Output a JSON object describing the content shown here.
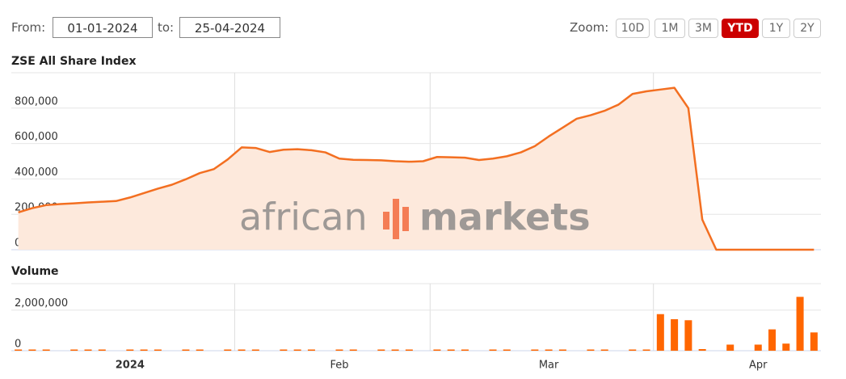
{
  "controls": {
    "from_label": "From:",
    "from_value": "01-01-2024",
    "to_label": "to:",
    "to_value": "25-04-2024",
    "zoom_label": "Zoom:",
    "zoom_buttons": [
      "10D",
      "1M",
      "3M",
      "YTD",
      "1Y",
      "2Y"
    ],
    "active_zoom": "YTD"
  },
  "watermark": {
    "left": "african",
    "right": "markets"
  },
  "chart_data": [
    {
      "type": "area",
      "title": "ZSE All Share Index",
      "color": "#f36f21",
      "fill": "#fde9dc",
      "categories": [
        null,
        null,
        null,
        null,
        null,
        null,
        null,
        null,
        "2024",
        null,
        null,
        null,
        null,
        null,
        null,
        null,
        null,
        null,
        null,
        null,
        null,
        null,
        null,
        "Feb",
        null,
        null,
        null,
        null,
        null,
        null,
        null,
        null,
        null,
        null,
        null,
        null,
        null,
        null,
        "Mar",
        null,
        null,
        null,
        null,
        null,
        null,
        null,
        null,
        null,
        null,
        null,
        null,
        null,
        null,
        "Apr",
        null,
        null,
        null,
        null
      ],
      "values": [
        211000,
        235000,
        252000,
        258000,
        262000,
        267000,
        271000,
        275000,
        295000,
        320000,
        345000,
        367000,
        398000,
        433000,
        455000,
        510000,
        578000,
        575000,
        552000,
        565000,
        568000,
        562000,
        550000,
        515000,
        508000,
        507000,
        505000,
        500000,
        497000,
        500000,
        524000,
        522000,
        520000,
        507000,
        515000,
        528000,
        550000,
        585000,
        640000,
        690000,
        740000,
        760000,
        785000,
        820000,
        880000,
        895000,
        905000,
        915000,
        800000,
        170000,
        0,
        0,
        0,
        0,
        0,
        0,
        0,
        0
      ],
      "ylim": [
        0,
        1000000
      ],
      "yticks": [
        0,
        {
          "value": 200000,
          "label": "200,000"
        },
        {
          "value": 400000,
          "label": "400,000"
        },
        {
          "value": 600000,
          "label": "600,000"
        },
        {
          "value": 800000,
          "label": "800,000"
        }
      ],
      "grid": true
    },
    {
      "type": "bar",
      "title": "Volume",
      "color": "#ff6600",
      "categories": [
        null,
        null,
        null,
        null,
        null,
        null,
        null,
        null,
        "2024",
        null,
        null,
        null,
        null,
        null,
        null,
        null,
        null,
        null,
        null,
        null,
        null,
        null,
        null,
        "Feb",
        null,
        null,
        null,
        null,
        null,
        null,
        null,
        null,
        null,
        null,
        null,
        null,
        null,
        null,
        "Mar",
        null,
        null,
        null,
        null,
        null,
        null,
        null,
        null,
        null,
        null,
        null,
        null,
        null,
        null,
        "Apr",
        null,
        null,
        null,
        null
      ],
      "values": [
        15000,
        15000,
        15000,
        0,
        15000,
        15000,
        15000,
        0,
        15000,
        15000,
        15000,
        0,
        15000,
        15000,
        0,
        15000,
        15000,
        15000,
        0,
        15000,
        15000,
        15000,
        0,
        15000,
        15000,
        0,
        15000,
        15000,
        15000,
        0,
        15000,
        15000,
        15000,
        0,
        15000,
        15000,
        0,
        15000,
        15000,
        15000,
        0,
        15000,
        15000,
        0,
        15000,
        15000,
        1800000,
        1550000,
        1500000,
        80000,
        0,
        300000,
        0,
        300000,
        1050000,
        350000,
        2650000,
        900000
      ],
      "ylim": [
        0,
        3300000
      ],
      "yticks": [
        0,
        {
          "value": 2000000,
          "label": "2,000,000"
        }
      ],
      "grid": true
    }
  ]
}
